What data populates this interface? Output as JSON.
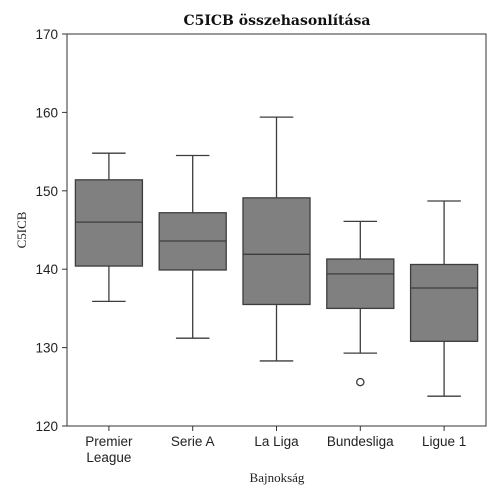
{
  "chart_data": {
    "type": "box",
    "title": "C5ICB összehasonlítása",
    "xlabel": "Bajnokság",
    "ylabel": "C5ICB",
    "ylim": [
      120,
      170
    ],
    "yticks": [
      120,
      130,
      140,
      150,
      160,
      170
    ],
    "categories": [
      "Premier League",
      "Serie A",
      "La Liga",
      "Bundesliga",
      "Ligue 1"
    ],
    "category_lines": [
      [
        "Premier",
        "League"
      ],
      [
        "Serie A"
      ],
      [
        "La Liga"
      ],
      [
        "Bundesliga"
      ],
      [
        "Ligue 1"
      ]
    ],
    "boxes": [
      {
        "whisker_low": 135.9,
        "q1": 140.4,
        "median": 146.0,
        "q3": 151.4,
        "whisker_high": 154.8,
        "outliers": []
      },
      {
        "whisker_low": 131.2,
        "q1": 139.9,
        "median": 143.6,
        "q3": 147.2,
        "whisker_high": 154.5,
        "outliers": []
      },
      {
        "whisker_low": 128.3,
        "q1": 135.5,
        "median": 141.9,
        "q3": 149.1,
        "whisker_high": 159.4,
        "outliers": []
      },
      {
        "whisker_low": 129.3,
        "q1": 135.0,
        "median": 139.4,
        "q3": 141.3,
        "whisker_high": 146.1,
        "outliers": [
          125.6
        ]
      },
      {
        "whisker_low": 123.8,
        "q1": 130.8,
        "median": 137.6,
        "q3": 140.6,
        "whisker_high": 148.7,
        "outliers": []
      }
    ],
    "grid": false,
    "colors": {
      "box_fill": "#808080",
      "line": "#3d3d3d",
      "axis": "#333333"
    }
  }
}
